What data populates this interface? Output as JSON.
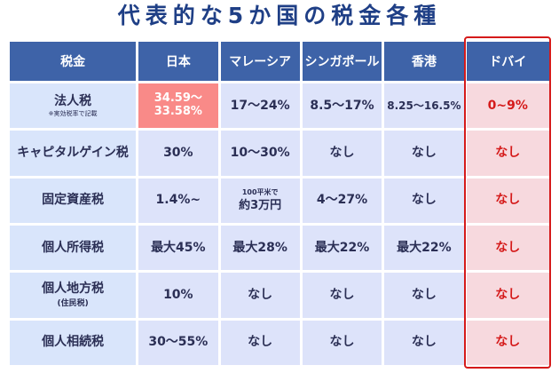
{
  "title": "代表的な5か国の税金各種",
  "columns": [
    "税金",
    "日本",
    "マレーシア",
    "シンガポール",
    "香港",
    "ドバイ"
  ],
  "rows": [
    {
      "label": "法人税",
      "label_note": "※実効税率で記載",
      "cells": [
        {
          "line1": "34.59～",
          "line2": "33.58%"
        },
        "17～24%",
        "8.5～17%",
        "8.25～16.5%",
        "0~9%"
      ]
    },
    {
      "label": "キャピタルゲイン税",
      "cells": [
        "30%",
        "10～30%",
        "なし",
        "なし",
        "なし"
      ]
    },
    {
      "label": "固定資産税",
      "cells": [
        "1.4%~",
        {
          "line1": "100平米で",
          "line2": "約3万円"
        },
        "4～27%",
        "なし",
        "なし"
      ]
    },
    {
      "label": "個人所得税",
      "cells": [
        "最大45%",
        "最大28%",
        "最大22%",
        "最大22%",
        "なし"
      ]
    },
    {
      "label": "個人地方税",
      "label_sub": "(住民税)",
      "cells": [
        "10%",
        "なし",
        "なし",
        "なし",
        "なし"
      ]
    },
    {
      "label": "個人相続税",
      "cells": [
        "30～55%",
        "なし",
        "なし",
        "なし",
        "なし"
      ]
    }
  ],
  "colors": {
    "title": "#1f3f86",
    "header_bg": "#3e63a8",
    "cell_bg": "#dde3fa",
    "label_bg": "#d9e5fb",
    "highlight_bg": "#f98a88",
    "dubai_bg": "#f7d9de",
    "dubai_text": "#d51a1a",
    "frame": "#d51a1a"
  }
}
